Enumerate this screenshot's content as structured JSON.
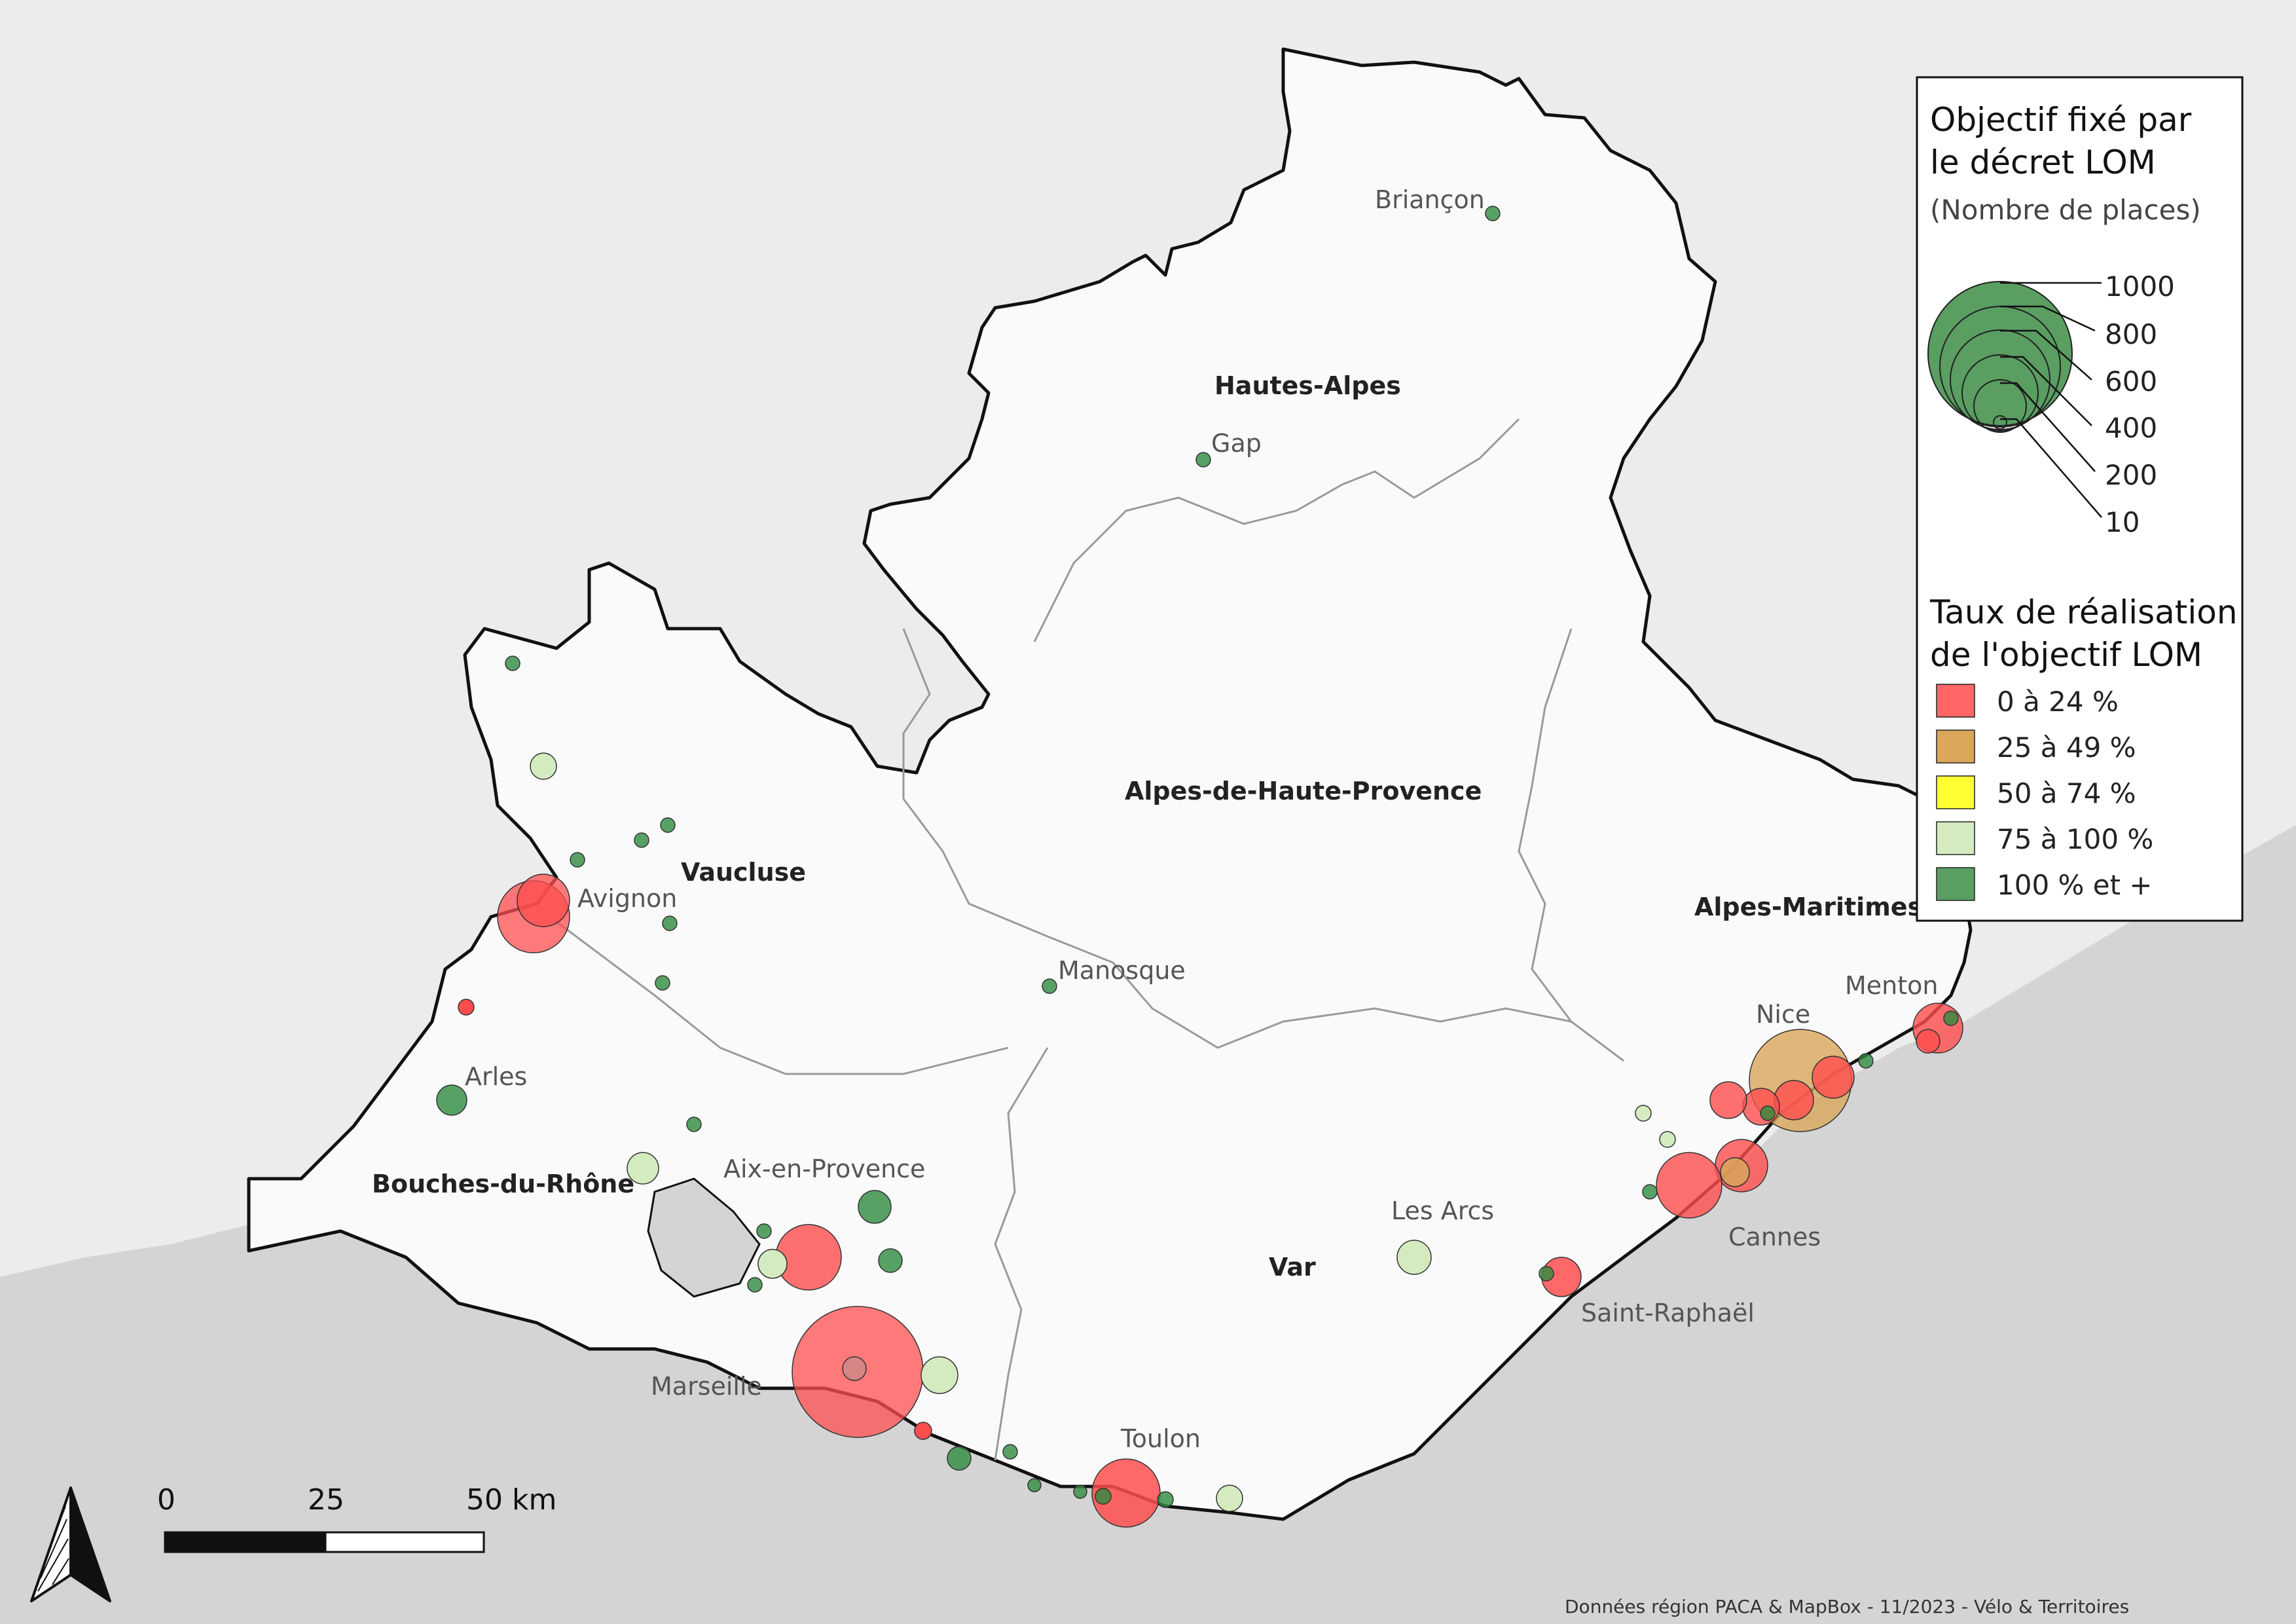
{
  "colors": {
    "sea": "#d4d4d4",
    "land_outside": "#ececec",
    "land_inside": "#fafafa",
    "border": "#111111",
    "dept_border": "#9a9a9a",
    "bubble_green": "#2e8b3e",
    "bubble_red": "#ff4d4d"
  },
  "departments": [
    {
      "name": "Hautes-Alpes"
    },
    {
      "name": "Alpes-de-Haute-Provence"
    },
    {
      "name": "Vaucluse"
    },
    {
      "name": "Alpes-Maritimes"
    },
    {
      "name": "Bouches-du-Rhône"
    },
    {
      "name": "Var"
    }
  ],
  "cities": [
    {
      "name": "Briançon"
    },
    {
      "name": "Gap"
    },
    {
      "name": "Avignon"
    },
    {
      "name": "Manosque"
    },
    {
      "name": "Arles"
    },
    {
      "name": "Aix-en-Provence"
    },
    {
      "name": "Marseille"
    },
    {
      "name": "Toulon"
    },
    {
      "name": "Les Arcs"
    },
    {
      "name": "Saint-Raphaël"
    },
    {
      "name": "Cannes"
    },
    {
      "name": "Nice"
    },
    {
      "name": "Menton"
    }
  ],
  "legend": {
    "size_title_1": "Objectif fixé par",
    "size_title_2": "le décret LOM",
    "size_subtitle": "(Nombre de places)",
    "size_values": [
      "1000",
      "800",
      "600",
      "400",
      "200",
      "10"
    ],
    "rate_title_1": "Taux de réalisation",
    "rate_title_2": "de l'objectif LOM",
    "rate_classes": [
      {
        "label": "0 à 24 %",
        "color": "#ff6666"
      },
      {
        "label": "25 à 49 %",
        "color": "#d9a65a"
      },
      {
        "label": "50 à 74 %",
        "color": "#ffff33"
      },
      {
        "label": "75 à 100 %",
        "color": "#d4ebc0"
      },
      {
        "label": "100 % et +",
        "color": "#5a9e62"
      }
    ]
  },
  "scale": {
    "labels": [
      "0",
      "25",
      "50 km"
    ]
  },
  "credit": "Données région PACA & MapBox - 11/2023 - Vélo & Territoires"
}
